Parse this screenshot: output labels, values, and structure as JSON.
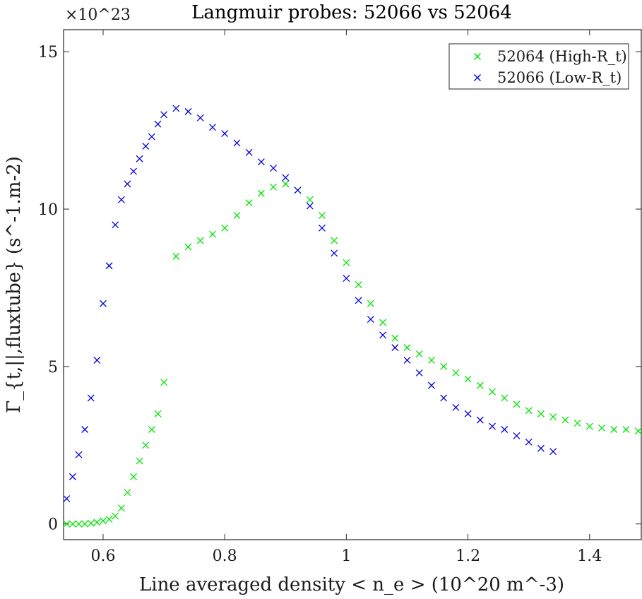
{
  "chart_data": {
    "type": "scatter",
    "title": "Langmuir probes: 52066 vs 52064",
    "xlabel": "Line averaged density < n_e > (10^20 m^-3)",
    "ylabel": "Γ_{t,||,fluxtube} (s^-1.m-2)",
    "y_exponent_label": "×10^23",
    "xlim": [
      0.535,
      1.485
    ],
    "ylim": [
      -0.5,
      15.7
    ],
    "x_ticks": [
      "0.6",
      "0.8",
      "1",
      "1.2",
      "1.4"
    ],
    "y_ticks": [
      "0",
      "5",
      "10",
      "15"
    ],
    "marker": "x",
    "legend_position": "top-right",
    "series": [
      {
        "name": "52064 (High-R_t)",
        "color": "#00e600",
        "x": [
          0.54,
          0.55,
          0.56,
          0.57,
          0.58,
          0.59,
          0.6,
          0.61,
          0.62,
          0.63,
          0.64,
          0.65,
          0.66,
          0.67,
          0.68,
          0.69,
          0.7,
          0.72,
          0.74,
          0.76,
          0.78,
          0.8,
          0.82,
          0.84,
          0.86,
          0.88,
          0.9,
          0.92,
          0.94,
          0.96,
          0.98,
          1.0,
          1.02,
          1.04,
          1.06,
          1.08,
          1.1,
          1.12,
          1.14,
          1.16,
          1.18,
          1.2,
          1.22,
          1.24,
          1.26,
          1.28,
          1.3,
          1.32,
          1.34,
          1.36,
          1.38,
          1.4,
          1.42,
          1.44,
          1.46,
          1.48
        ],
        "y": [
          0.0,
          0.0,
          0.0,
          0.0,
          0.02,
          0.05,
          0.1,
          0.15,
          0.25,
          0.5,
          1.0,
          1.5,
          2.0,
          2.5,
          3.0,
          3.5,
          4.5,
          8.5,
          8.8,
          9.0,
          9.2,
          9.4,
          9.8,
          10.2,
          10.5,
          10.7,
          10.8,
          10.6,
          10.3,
          9.8,
          9.0,
          8.3,
          7.6,
          7.0,
          6.4,
          5.9,
          5.6,
          5.4,
          5.2,
          5.0,
          4.8,
          4.6,
          4.4,
          4.2,
          4.0,
          3.8,
          3.6,
          3.5,
          3.4,
          3.3,
          3.2,
          3.1,
          3.05,
          3.0,
          3.0,
          2.95
        ]
      },
      {
        "name": "52066 (Low-R_t)",
        "color": "#0000e0",
        "x": [
          0.54,
          0.55,
          0.56,
          0.57,
          0.58,
          0.59,
          0.6,
          0.61,
          0.62,
          0.63,
          0.64,
          0.65,
          0.66,
          0.67,
          0.68,
          0.69,
          0.7,
          0.72,
          0.74,
          0.76,
          0.78,
          0.8,
          0.82,
          0.84,
          0.86,
          0.88,
          0.9,
          0.92,
          0.94,
          0.96,
          0.98,
          1.0,
          1.02,
          1.04,
          1.06,
          1.08,
          1.1,
          1.12,
          1.14,
          1.16,
          1.18,
          1.2,
          1.22,
          1.24,
          1.26,
          1.28,
          1.3,
          1.32,
          1.34
        ],
        "y": [
          0.8,
          1.5,
          2.2,
          3.0,
          4.0,
          5.2,
          7.0,
          8.2,
          9.5,
          10.3,
          10.8,
          11.2,
          11.6,
          12.0,
          12.3,
          12.7,
          13.0,
          13.2,
          13.1,
          12.9,
          12.6,
          12.4,
          12.1,
          11.8,
          11.5,
          11.3,
          11.0,
          10.6,
          10.1,
          9.4,
          8.6,
          7.8,
          7.1,
          6.5,
          6.0,
          5.6,
          5.2,
          4.8,
          4.4,
          4.0,
          3.7,
          3.5,
          3.3,
          3.1,
          3.0,
          2.8,
          2.6,
          2.4,
          2.3
        ]
      }
    ]
  }
}
